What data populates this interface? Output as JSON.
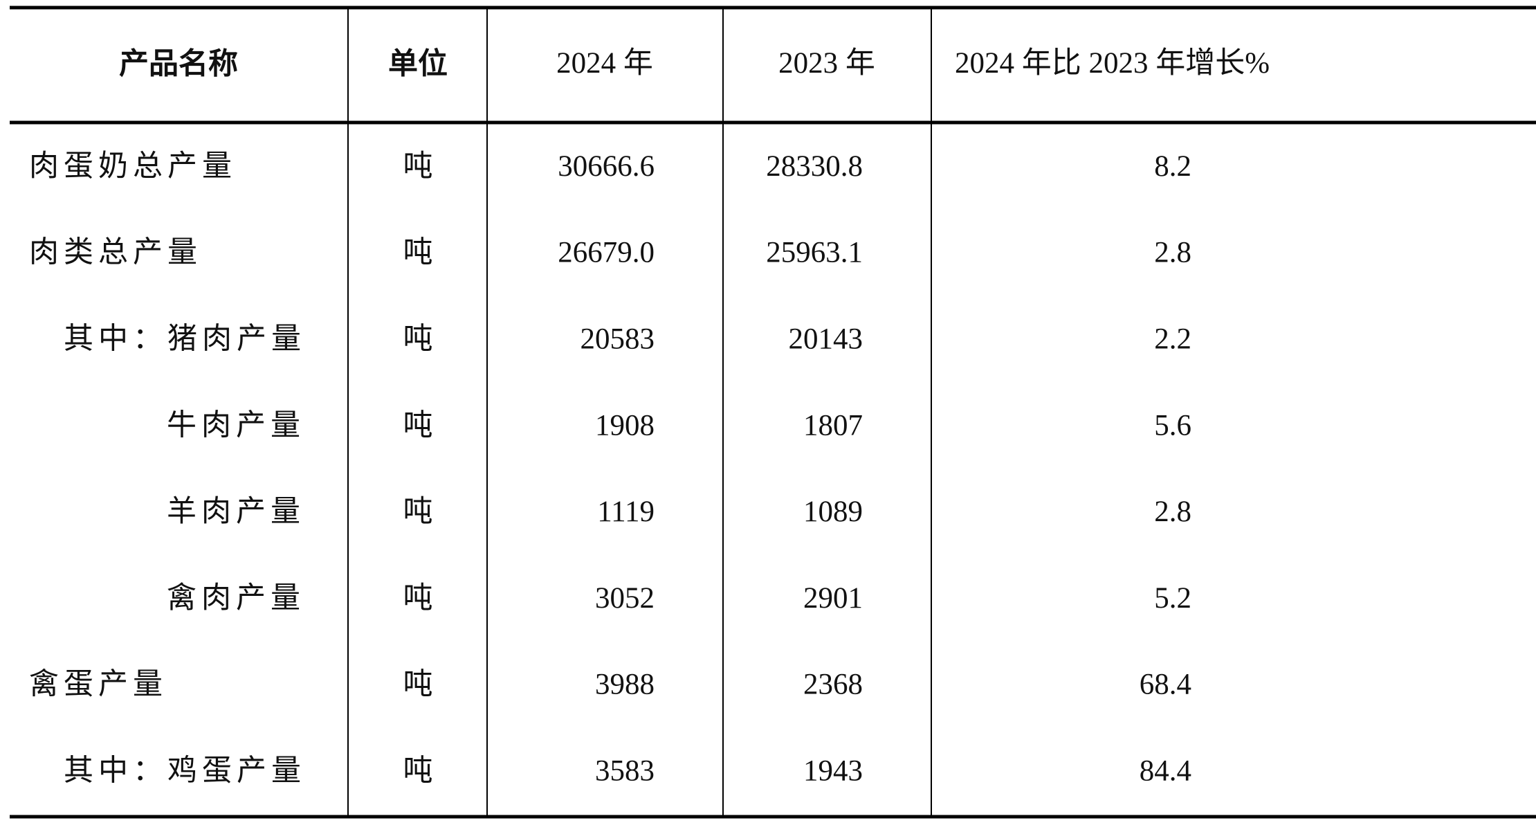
{
  "table": {
    "header": [
      "产品名称",
      "单位",
      "2024 年",
      "2023 年",
      "2024 年比 2023 年增长%"
    ],
    "rows": [
      [
        "肉蛋奶总产量",
        "吨",
        "30666.6",
        "28330.8",
        "8.2"
      ],
      [
        "肉类总产量",
        "吨",
        "26679.0",
        "25963.1",
        "2.8"
      ],
      [
        "其中：猪肉产量",
        "吨",
        "20583",
        "20143",
        "2.2"
      ],
      [
        "牛肉产量",
        "吨",
        "1908",
        "1807",
        "5.6"
      ],
      [
        "羊肉产量",
        "吨",
        "1119",
        "1089",
        "2.8"
      ],
      [
        "禽肉产量",
        "吨",
        "3052",
        "2901",
        "5.2"
      ],
      [
        "禽蛋产量",
        "吨",
        "3988",
        "2368",
        "68.4"
      ],
      [
        "其中：鸡蛋产量",
        "吨",
        "3583",
        "1943",
        "84.4"
      ]
    ]
  }
}
